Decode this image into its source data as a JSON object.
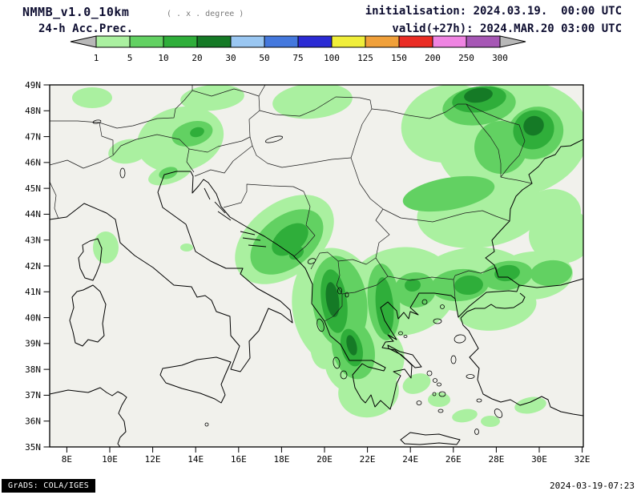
{
  "header": {
    "model": "NMMB_v1.0_10km",
    "model_note": "( . x . degree )",
    "product": "24-h Acc.Prec.",
    "init_label": "initialisation: 2024.03.19.  00:00 UTC",
    "valid_label": "valid(+27h): 2024.MAR.20 03:00 UTC"
  },
  "colorbar": {
    "labels": [
      "1",
      "5",
      "10",
      "20",
      "30",
      "50",
      "75",
      "100",
      "125",
      "150",
      "200",
      "250",
      "300"
    ],
    "segment_colors": [
      "#aaf0a0",
      "#62d162",
      "#2fae3a",
      "#157a26",
      "#9ac7f2",
      "#4478dd",
      "#2b2bd4",
      "#f0ee3a",
      "#f0a03a",
      "#ea2c24",
      "#ef84e2",
      "#a657b5"
    ],
    "arrow_color": "#b8b8b8"
  },
  "map": {
    "lat_labels": [
      "49N",
      "48N",
      "47N",
      "46N",
      "45N",
      "44N",
      "43N",
      "42N",
      "41N",
      "40N",
      "39N",
      "38N",
      "37N",
      "36N",
      "35N"
    ],
    "lon_labels": [
      "8E",
      "10E",
      "12E",
      "14E",
      "16E",
      "18E",
      "20E",
      "22E",
      "24E",
      "26E",
      "28E",
      "30E",
      "32E"
    ]
  },
  "footer": {
    "left": "GrADS: COLA/IGES",
    "right": "2024-03-19-07:23"
  }
}
